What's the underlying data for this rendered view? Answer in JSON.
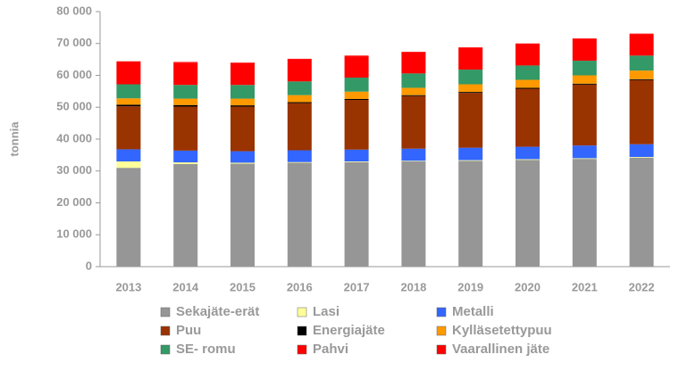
{
  "chart_data": {
    "type": "stacked_bar",
    "y_label": "tonnia",
    "categories": [
      "2013",
      "2014",
      "2015",
      "2016",
      "2017",
      "2018",
      "2019",
      "2020",
      "2021",
      "2022"
    ],
    "series": [
      {
        "name": "Sekajäte-erät",
        "color": "#969696",
        "values": [
          31000,
          32200,
          32300,
          32600,
          32800,
          33000,
          33200,
          33500,
          33800,
          34200
        ]
      },
      {
        "name": "Lasi",
        "color": "#ffff99",
        "values": [
          2000,
          500,
          300,
          200,
          200,
          200,
          200,
          200,
          200,
          200
        ]
      },
      {
        "name": "Metalli",
        "color": "#3366ff",
        "values": [
          3800,
          3700,
          3600,
          3700,
          3700,
          3800,
          3900,
          3900,
          4000,
          4000
        ]
      },
      {
        "name": "Puu",
        "color": "#993300",
        "values": [
          13500,
          13800,
          14000,
          14800,
          15600,
          16500,
          17200,
          18200,
          19100,
          20100
        ]
      },
      {
        "name": "Energiajäte",
        "color": "#000000",
        "values": [
          500,
          500,
          400,
          300,
          300,
          300,
          300,
          300,
          300,
          300
        ]
      },
      {
        "name": "Kylläsetettypuu",
        "color": "#ff9900",
        "values": [
          2000,
          2000,
          2100,
          2200,
          2300,
          2300,
          2400,
          2500,
          2600,
          2700
        ]
      },
      {
        "name": "SE- romu",
        "color": "#339966",
        "values": [
          4400,
          4300,
          4300,
          4300,
          4400,
          4500,
          4600,
          4500,
          4600,
          4700
        ]
      },
      {
        "name": "Pahvi",
        "color": "#ff0000",
        "values": [
          7000,
          7000,
          6800,
          6900,
          6700,
          6600,
          6800,
          6700,
          6800,
          6700
        ]
      },
      {
        "name": "Vaarallinen jäte",
        "color": "#ff0000",
        "values": [
          200,
          200,
          200,
          200,
          200,
          200,
          200,
          200,
          200,
          200
        ]
      }
    ],
    "ylim": [
      0,
      80000
    ],
    "yticks": [
      0,
      {
        "value": 10000,
        "label": "10 000"
      },
      {
        "value": 20000,
        "label": "20 000"
      },
      {
        "value": 30000,
        "label": "30 000"
      },
      {
        "value": 40000,
        "label": "40 000"
      },
      {
        "value": 50000,
        "label": "50 000"
      },
      {
        "value": 60000,
        "label": "60 000"
      },
      {
        "value": 70000,
        "label": "70 000"
      },
      {
        "value": 80000,
        "label": "80 000"
      }
    ],
    "grid": false,
    "legend": "bottom"
  }
}
